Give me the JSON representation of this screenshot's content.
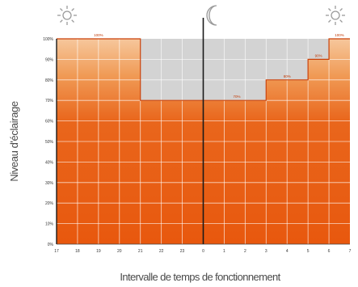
{
  "chart_data": {
    "type": "area",
    "xlabel": "Intervalle de temps de fonctionnement",
    "ylabel": "Niveau d'éclairage",
    "x_ticks": [
      "17",
      "18",
      "19",
      "20",
      "21",
      "22",
      "23",
      "0",
      "1",
      "2",
      "3",
      "4",
      "5",
      "6",
      "7"
    ],
    "y_ticks": [
      "0%",
      "10%",
      "20%",
      "30%",
      "40%",
      "50%",
      "60%",
      "70%",
      "80%",
      "90%",
      "100%"
    ],
    "ylim": [
      0,
      100
    ],
    "grid": true,
    "steps": [
      {
        "from": "17",
        "to": "21",
        "value": 100,
        "label": "100%"
      },
      {
        "from": "21",
        "to": "3",
        "value": 70,
        "label": "70%"
      },
      {
        "from": "3",
        "to": "5",
        "value": 80,
        "label": "80%"
      },
      {
        "from": "5",
        "to": "6",
        "value": 90,
        "label": "90%"
      },
      {
        "from": "6",
        "to": "7",
        "value": 100,
        "label": "100%"
      }
    ],
    "data_labels_shown": [
      "100%",
      "70%",
      "80%",
      "90%",
      "100%"
    ],
    "midnight_marker": "0",
    "colors": {
      "fill_top": "#f4b27a",
      "fill_bottom": "#e85a10",
      "step_line": "#c9410a",
      "background": "#d3d3d3",
      "grid": "#ffffff",
      "marker": "#1a1a1a"
    }
  },
  "icons": {
    "left": "sun-icon",
    "center": "moon-icon",
    "right": "sun-icon"
  }
}
